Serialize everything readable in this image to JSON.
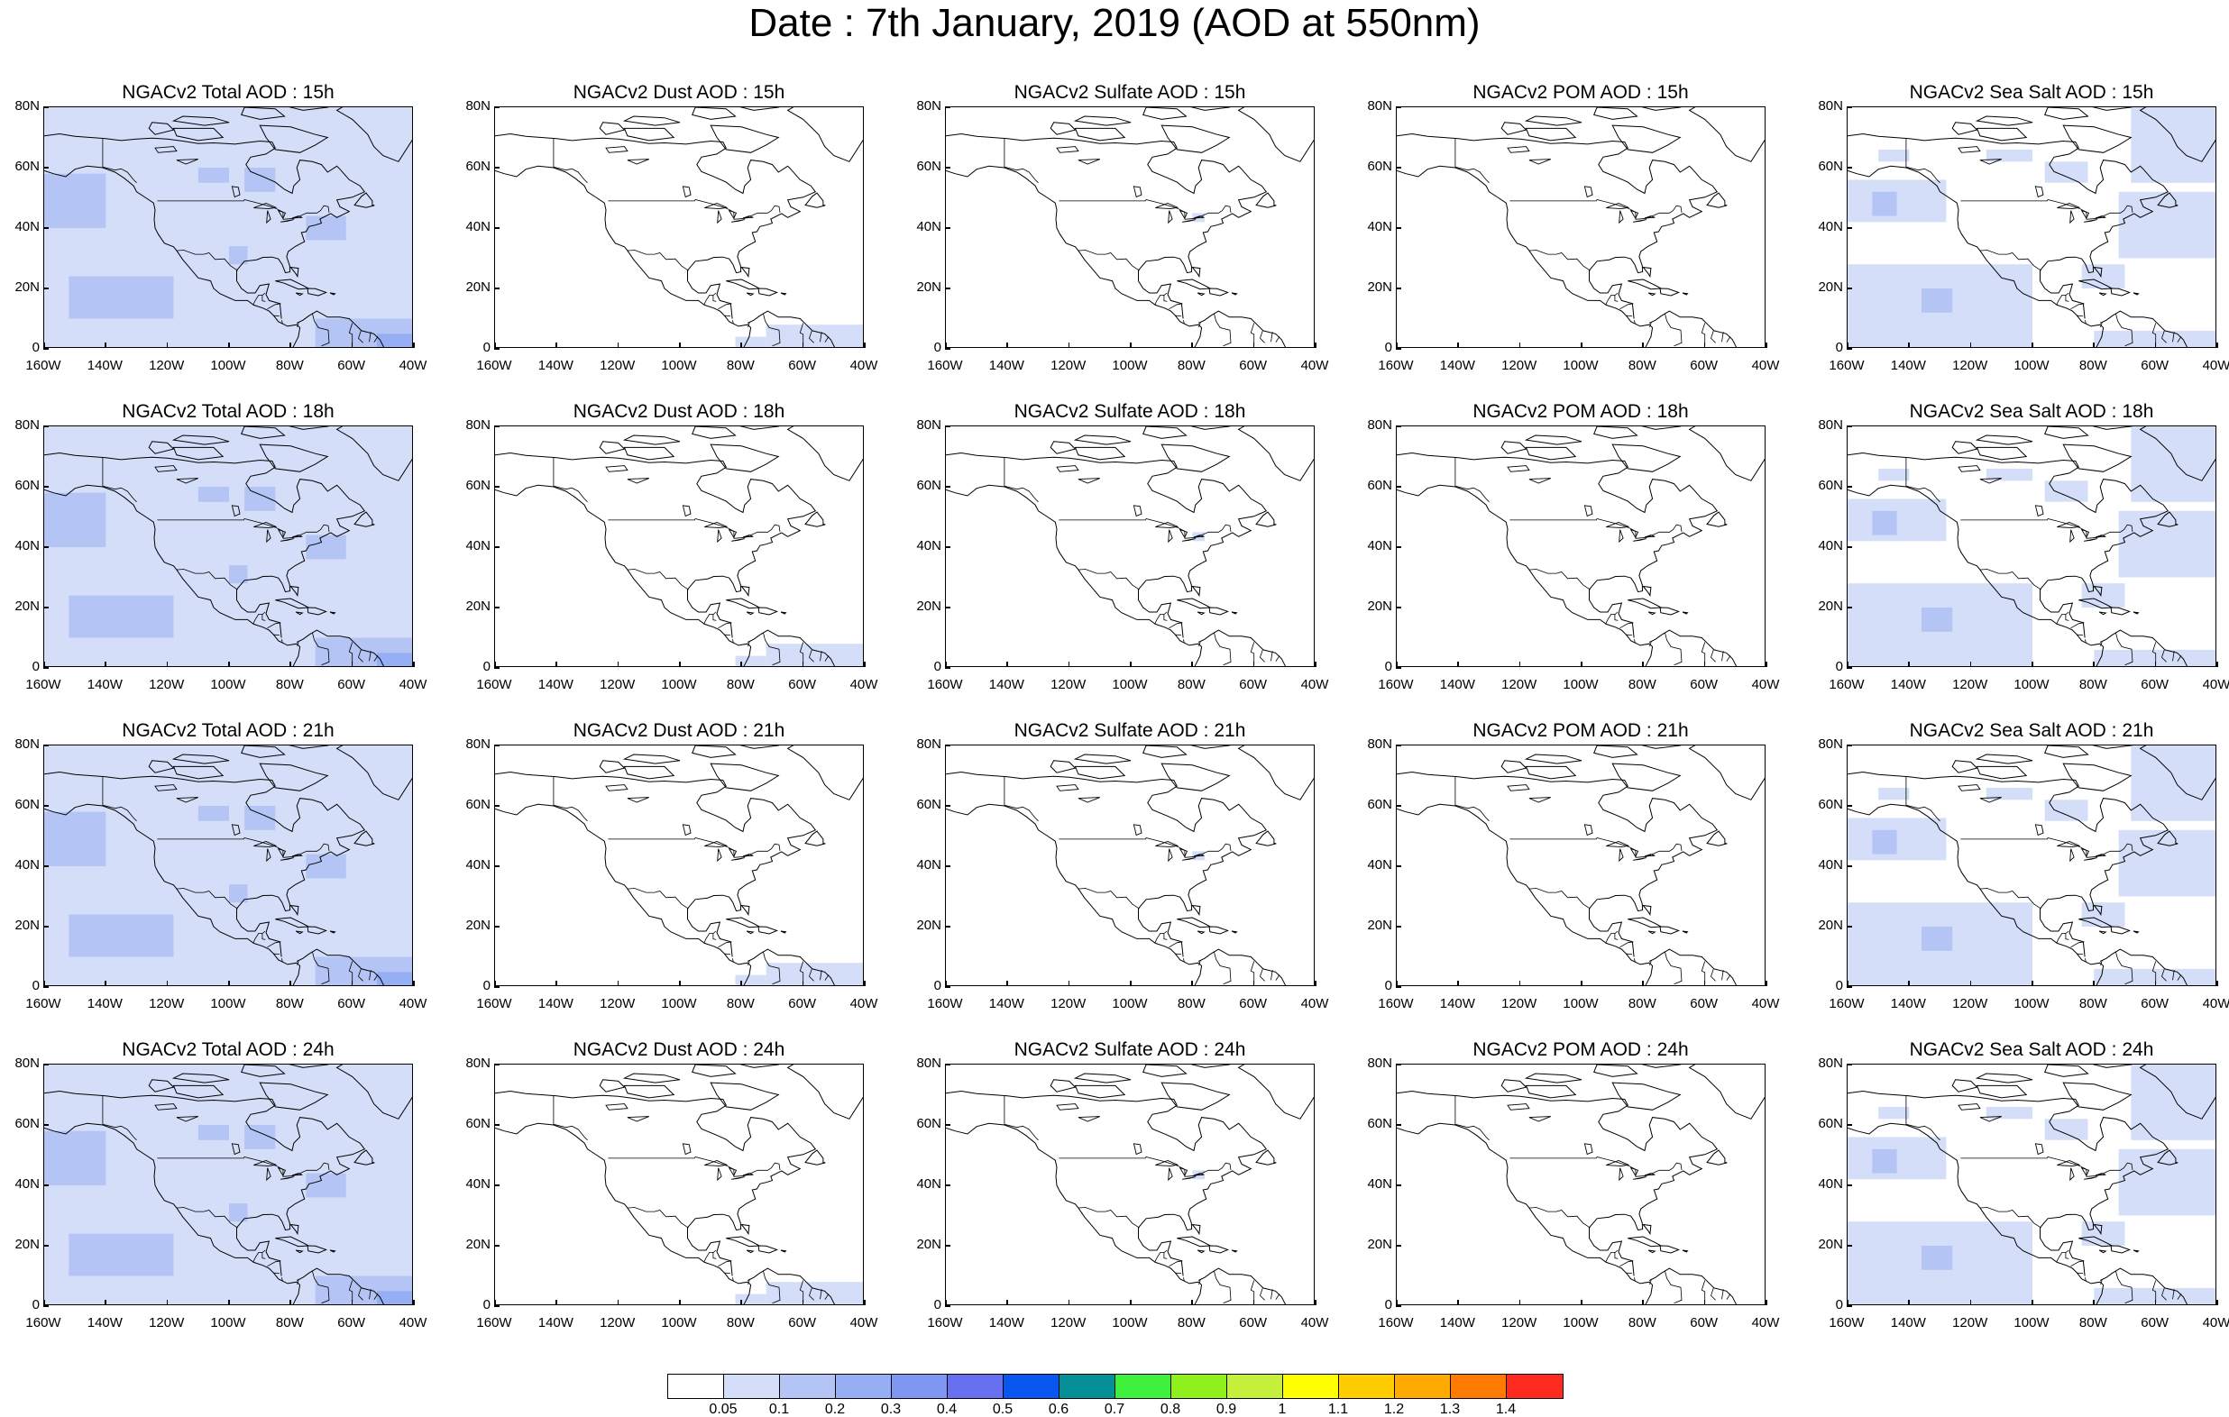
{
  "title": "Date : 7th January, 2019 (AOD at 550nm)",
  "y_tick_labels": [
    "80N",
    "60N",
    "40N",
    "20N",
    "0"
  ],
  "x_tick_labels": [
    "160W",
    "140W",
    "120W",
    "100W",
    "80W",
    "60W",
    "40W"
  ],
  "panels": [
    {
      "row": 0,
      "col": 0,
      "title": "NGACv2 Total AOD : 15h",
      "species": "total"
    },
    {
      "row": 0,
      "col": 1,
      "title": "NGACv2 Dust AOD : 15h",
      "species": "dust"
    },
    {
      "row": 0,
      "col": 2,
      "title": "NGACv2 Sulfate AOD : 15h",
      "species": "sulfate"
    },
    {
      "row": 0,
      "col": 3,
      "title": "NGACv2 POM AOD : 15h",
      "species": "pom"
    },
    {
      "row": 0,
      "col": 4,
      "title": "NGACv2 Sea Salt AOD : 15h",
      "species": "seasalt"
    },
    {
      "row": 1,
      "col": 0,
      "title": "NGACv2 Total AOD : 18h",
      "species": "total"
    },
    {
      "row": 1,
      "col": 1,
      "title": "NGACv2 Dust AOD : 18h",
      "species": "dust"
    },
    {
      "row": 1,
      "col": 2,
      "title": "NGACv2 Sulfate AOD : 18h",
      "species": "sulfate"
    },
    {
      "row": 1,
      "col": 3,
      "title": "NGACv2 POM AOD : 18h",
      "species": "pom"
    },
    {
      "row": 1,
      "col": 4,
      "title": "NGACv2 Sea Salt AOD : 18h",
      "species": "seasalt"
    },
    {
      "row": 2,
      "col": 0,
      "title": "NGACv2 Total AOD : 21h",
      "species": "total"
    },
    {
      "row": 2,
      "col": 1,
      "title": "NGACv2 Dust AOD : 21h",
      "species": "dust"
    },
    {
      "row": 2,
      "col": 2,
      "title": "NGACv2 Sulfate AOD : 21h",
      "species": "sulfate"
    },
    {
      "row": 2,
      "col": 3,
      "title": "NGACv2 POM AOD : 21h",
      "species": "pom"
    },
    {
      "row": 2,
      "col": 4,
      "title": "NGACv2 Sea Salt AOD : 21h",
      "species": "seasalt"
    },
    {
      "row": 3,
      "col": 0,
      "title": "NGACv2 Total AOD : 24h",
      "species": "total"
    },
    {
      "row": 3,
      "col": 1,
      "title": "NGACv2 Dust AOD : 24h",
      "species": "dust"
    },
    {
      "row": 3,
      "col": 2,
      "title": "NGACv2 Sulfate AOD : 24h",
      "species": "sulfate"
    },
    {
      "row": 3,
      "col": 3,
      "title": "NGACv2 POM AOD : 24h",
      "species": "pom"
    },
    {
      "row": 3,
      "col": 4,
      "title": "NGACv2 Sea Salt  AOD : 24h",
      "species": "seasalt"
    }
  ],
  "colorbar": {
    "colors": [
      "#ffffff",
      "#d4def8",
      "#b4c5f5",
      "#96aef4",
      "#7f97f2",
      "#6670f0",
      "#0a56f0",
      "#058f96",
      "#3cf03c",
      "#8ff01e",
      "#c4f03c",
      "#ffff00",
      "#ffcc00",
      "#ffaa00",
      "#ff7a00",
      "#ff2a1e"
    ],
    "labels": [
      "0.05",
      "0.1",
      "0.2",
      "0.3",
      "0.4",
      "0.5",
      "0.6",
      "0.7",
      "0.8",
      "0.9",
      "1",
      "1.1",
      "1.2",
      "1.3",
      "1.4"
    ]
  },
  "shading_colors": {
    "light": "#d4def8",
    "medium": "#b4c5f5",
    "strong": "#96aef4"
  }
}
